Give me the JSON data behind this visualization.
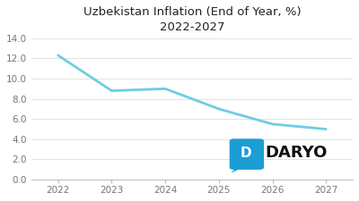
{
  "title_line1": "Uzbekistan Inflation (End of Year, %)",
  "title_line2": "2022-2027",
  "x_values": [
    2022,
    2023,
    2024,
    2025,
    2026,
    2027
  ],
  "y_values": [
    12.3,
    8.8,
    9.0,
    7.0,
    5.5,
    5.0
  ],
  "line_color": "#6DCDE3",
  "line_width": 2.0,
  "ylim": [
    0,
    14
  ],
  "yticks": [
    0.0,
    2.0,
    4.0,
    6.0,
    8.0,
    10.0,
    12.0,
    14.0
  ],
  "xticks": [
    2022,
    2023,
    2024,
    2025,
    2026,
    2027
  ],
  "xlim": [
    2021.5,
    2027.5
  ],
  "background_color": "#ffffff",
  "grid_color": "#dddddd",
  "title_fontsize": 9.5,
  "tick_fontsize": 7.5,
  "logo_text": "DARYO",
  "logo_color": "#1B9ED4",
  "logo_text_color": "#111111",
  "logo_text_fontsize": 13
}
